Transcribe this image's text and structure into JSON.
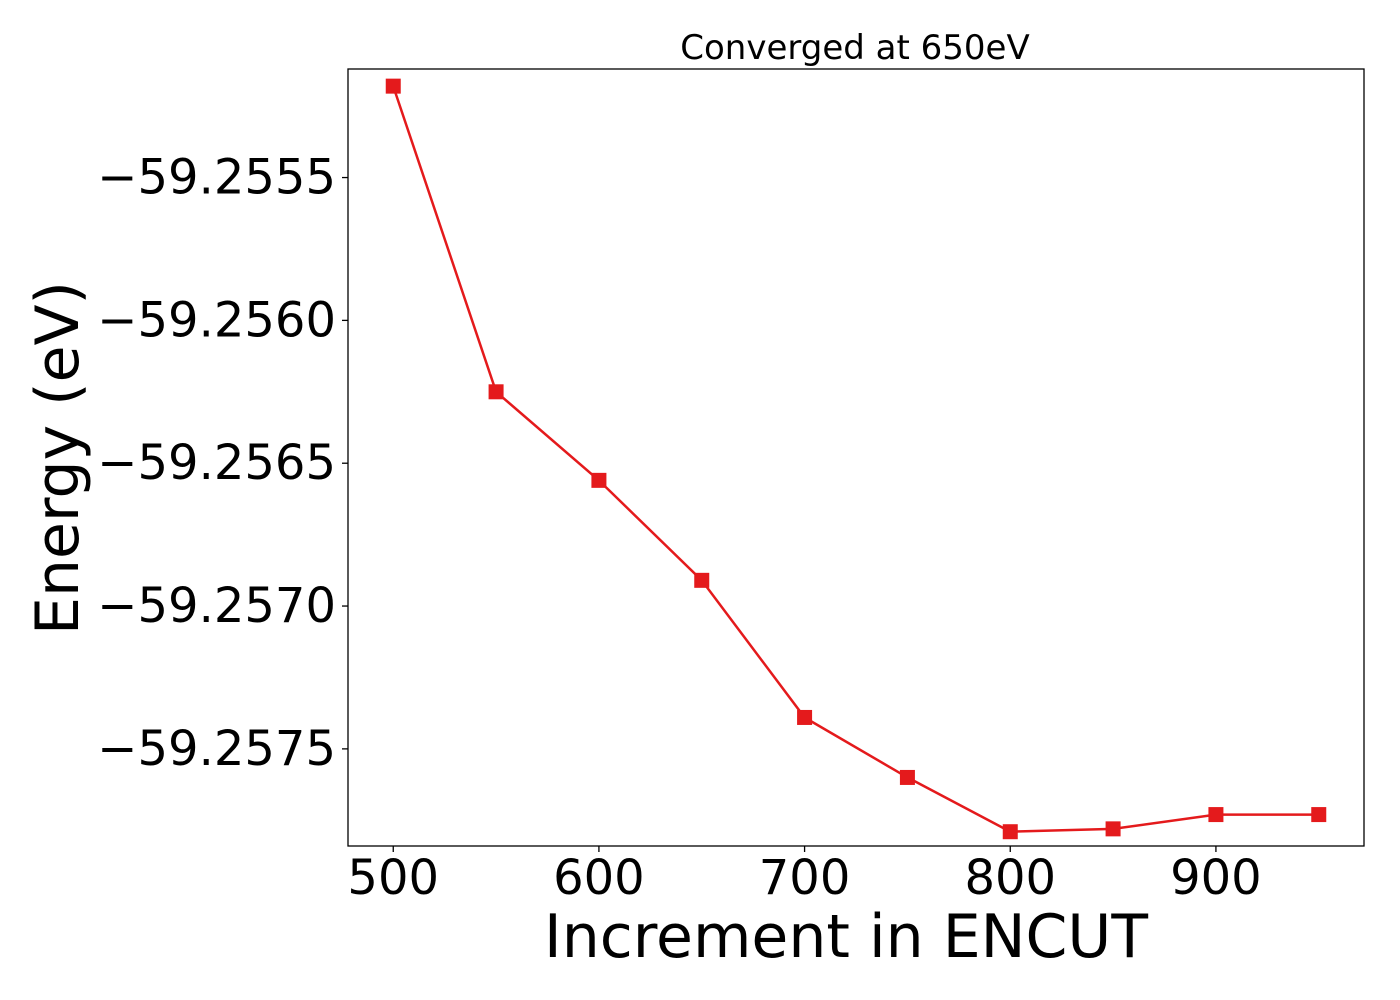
{
  "chart_data": {
    "type": "line",
    "title": "Converged at 650eV",
    "xlabel": "Increment in ENCUT",
    "ylabel": "Energy (eV)",
    "xlim": [
      478,
      972
    ],
    "ylim": [
      -59.25784,
      -59.25512
    ],
    "x_ticks": [
      500,
      600,
      700,
      800,
      900
    ],
    "x_tick_labels": [
      "500",
      "600",
      "700",
      "800",
      "900"
    ],
    "y_ticks": [
      -59.2555,
      -59.256,
      -59.2565,
      -59.257,
      -59.2575
    ],
    "y_tick_labels": [
      "−59.2555",
      "−59.2560",
      "−59.2565",
      "−59.2570",
      "−59.2575"
    ],
    "grid": false,
    "series": [
      {
        "color": "#e41a1c",
        "marker": "square",
        "x": [
          500,
          550,
          600,
          650,
          700,
          750,
          800,
          850,
          900,
          950
        ],
        "y": [
          -59.25518,
          -59.25625,
          -59.25656,
          -59.25691,
          -59.25739,
          -59.2576,
          -59.25779,
          -59.25778,
          -59.25773,
          -59.25773
        ]
      }
    ]
  }
}
